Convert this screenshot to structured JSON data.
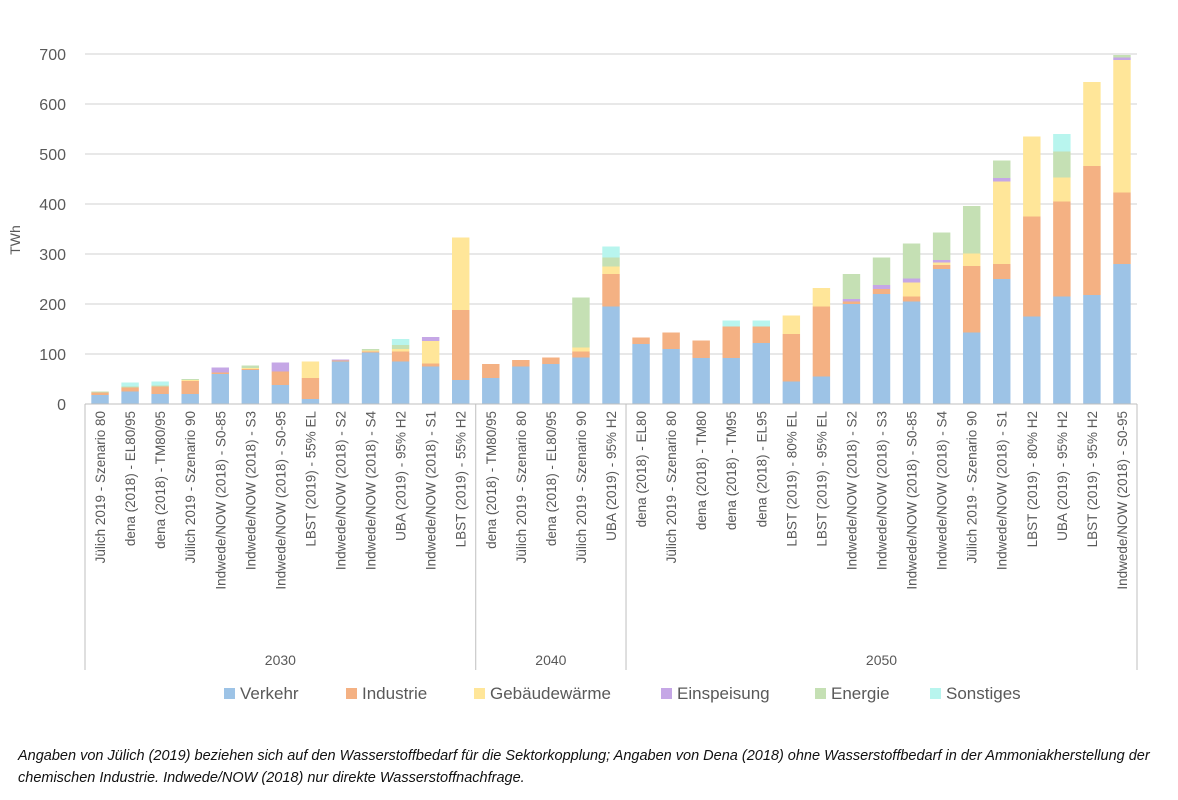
{
  "chart_data": {
    "type": "bar",
    "stacked": true,
    "ylabel": "TWh",
    "xlabel": "",
    "ylim": [
      0,
      700
    ],
    "yticks": [
      0,
      100,
      200,
      300,
      400,
      500,
      600,
      700
    ],
    "grid": true,
    "legend_position": "bottom",
    "groups": [
      {
        "label": "2030",
        "count": 13
      },
      {
        "label": "2040",
        "count": 5
      },
      {
        "label": "2050",
        "count": 17
      }
    ],
    "categories": [
      "Jülich 2019 - Szenario 80",
      "dena (2018) - EL80/95",
      "dena (2018) - TM80/95",
      "Jülich 2019 - Szenario 90",
      "Indwede/NOW (2018) - S0-85",
      "Indwede/NOW (2018) - S3",
      "Indwede/NOW (2018) - S0-95",
      "LBST (2019) - 55% EL",
      "Indwede/NOW (2018) - S2",
      "Indwede/NOW (2018) - S4",
      "UBA (2019) - 95% H2",
      "Indwede/NOW (2018) - S1",
      "LBST (2019) - 55% H2",
      "dena (2018) - TM80/95",
      "Jülich 2019 - Szenario 80",
      "dena (2018) - EL80/95",
      "Jülich 2019 - Szenario 90",
      "UBA (2019) - 95% H2",
      "dena (2018) - EL80",
      "Jülich 2019 - Szenario 80",
      "dena (2018) - TM80",
      "dena (2018) - TM95",
      "dena (2018) - EL95",
      "LBST (2019) - 80% EL",
      "LBST (2019) - 95% EL",
      "Indwede/NOW (2018) - S2",
      "Indwede/NOW (2018) - S3",
      "Indwede/NOW (2018) - S0-85",
      "Indwede/NOW (2018) - S4",
      "Jülich 2019 - Szenario 90",
      "Indwede/NOW (2018) - S1",
      "LBST (2019) - 80% H2",
      "UBA (2019) - 95% H2",
      "LBST (2019) - 95% H2",
      "Indwede/NOW (2018) - S0-95"
    ],
    "series": [
      {
        "name": "Verkehr",
        "color": "#9dc3e6",
        "values": [
          18,
          25,
          20,
          20,
          60,
          68,
          38,
          10,
          85,
          103,
          85,
          75,
          48,
          52,
          75,
          80,
          93,
          195,
          120,
          110,
          92,
          92,
          122,
          45,
          55,
          200,
          220,
          205,
          270,
          143,
          250,
          175,
          215,
          218,
          280
        ]
      },
      {
        "name": "Industrie",
        "color": "#f4b183",
        "values": [
          5,
          8,
          15,
          26,
          3,
          2,
          27,
          42,
          2,
          2,
          20,
          6,
          140,
          28,
          13,
          13,
          12,
          65,
          13,
          33,
          35,
          63,
          33,
          95,
          140,
          5,
          10,
          10,
          8,
          133,
          30,
          200,
          190,
          258,
          143
        ]
      },
      {
        "name": "Gebäudewärme",
        "color": "#ffe699",
        "values": [
          0,
          0,
          0,
          2,
          0,
          2,
          0,
          33,
          0,
          2,
          5,
          45,
          145,
          0,
          0,
          0,
          8,
          15,
          0,
          0,
          0,
          0,
          0,
          37,
          37,
          0,
          0,
          28,
          5,
          25,
          165,
          160,
          48,
          168,
          265
        ]
      },
      {
        "name": "Einspeisung",
        "color": "#c5a7e6",
        "values": [
          0,
          0,
          0,
          0,
          10,
          0,
          18,
          0,
          2,
          0,
          0,
          8,
          0,
          0,
          0,
          0,
          0,
          0,
          0,
          0,
          0,
          0,
          0,
          0,
          0,
          5,
          8,
          8,
          5,
          0,
          7,
          0,
          0,
          0,
          5
        ]
      },
      {
        "name": "Energie",
        "color": "#c5e0b4",
        "values": [
          2,
          2,
          2,
          2,
          0,
          5,
          0,
          0,
          0,
          3,
          8,
          0,
          0,
          0,
          0,
          0,
          100,
          18,
          0,
          0,
          0,
          0,
          0,
          0,
          0,
          50,
          55,
          70,
          55,
          95,
          35,
          0,
          52,
          0,
          5
        ]
      },
      {
        "name": "Sonstiges",
        "color": "#b8f5ee",
        "values": [
          0,
          8,
          8,
          0,
          0,
          0,
          0,
          0,
          0,
          0,
          12,
          0,
          0,
          0,
          0,
          0,
          0,
          22,
          0,
          0,
          0,
          12,
          12,
          0,
          0,
          0,
          0,
          0,
          0,
          0,
          0,
          0,
          35,
          0,
          0
        ]
      }
    ]
  },
  "caption": "Angaben von Jülich (2019) beziehen sich auf den Wasserstoffbedarf für die Sektorkopplung; Angaben von Dena (2018) ohne Wasserstoffbedarf in der Ammoniakherstellung der chemischen Industrie. Indwede/NOW (2018) nur direkte Wasserstoffnachfrage."
}
